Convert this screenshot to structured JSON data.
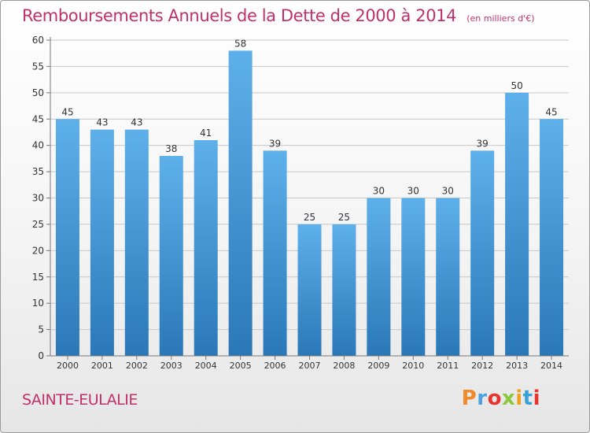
{
  "header": {
    "title": "Remboursements Annuels de la Dette de 2000 à 2014",
    "subtitle": "(en milliers d'€)"
  },
  "footer": {
    "commune": "SAINTE-EULALIE",
    "brand": "Proxiti"
  },
  "colors": {
    "title": "#c0306a",
    "bar_top": "#5eb0ea",
    "bar_bottom": "#2a78b8",
    "brand_letters": [
      "#f08a2a",
      "#4aa0e0",
      "#e8342f",
      "#8cc63e",
      "#f0a020",
      "#3aa0d8",
      "#e8342f"
    ]
  },
  "chart_data": {
    "type": "bar",
    "categories": [
      "2000",
      "2001",
      "2002",
      "2003",
      "2004",
      "2005",
      "2006",
      "2007",
      "2008",
      "2009",
      "2010",
      "2011",
      "2012",
      "2013",
      "2014"
    ],
    "values": [
      45,
      43,
      43,
      38,
      41,
      58,
      39,
      25,
      25,
      30,
      30,
      30,
      39,
      50,
      45
    ],
    "title": "Remboursements Annuels de la Dette de 2000 à 2014",
    "xlabel": "",
    "ylabel": "",
    "ylim": [
      0,
      60
    ],
    "yticks": [
      0,
      5,
      10,
      15,
      20,
      25,
      30,
      35,
      40,
      45,
      50,
      55,
      60
    ],
    "grid": true
  }
}
